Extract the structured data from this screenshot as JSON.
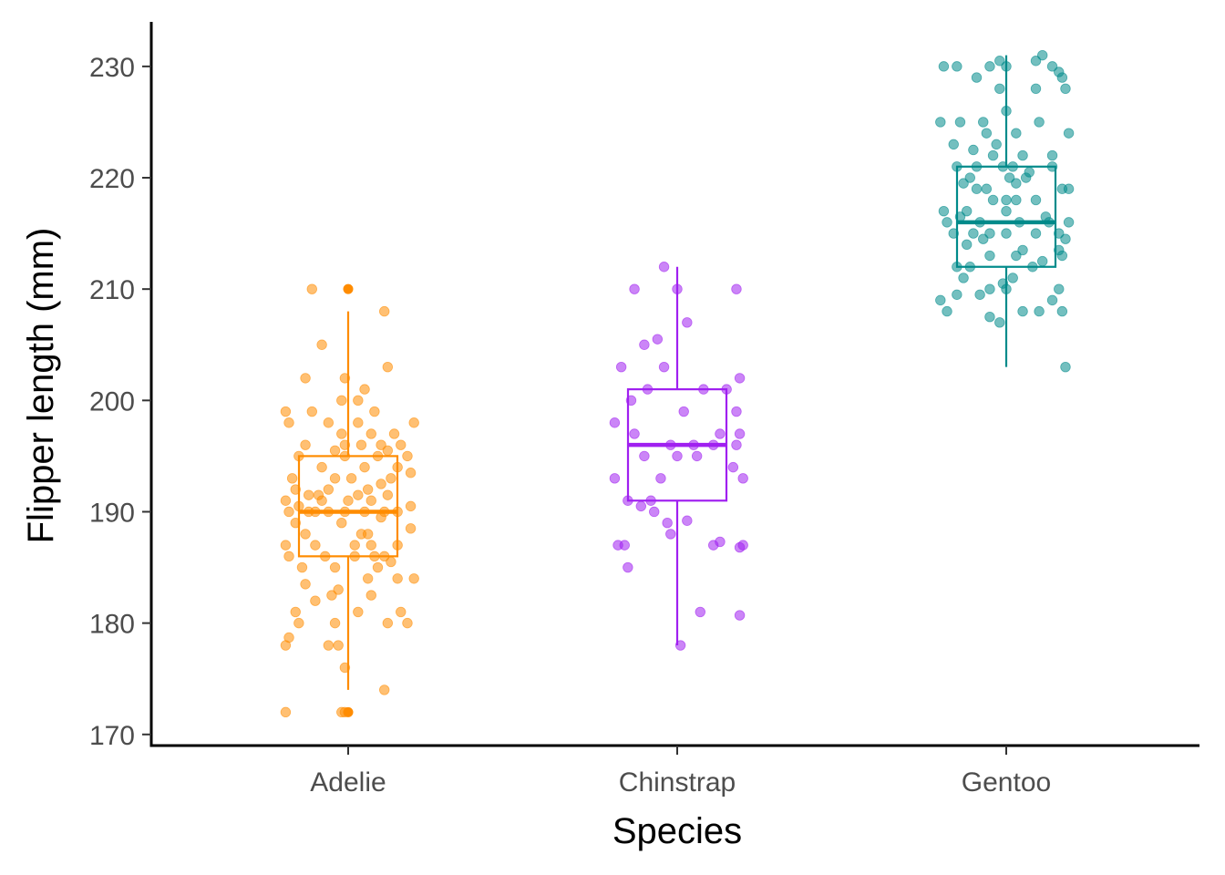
{
  "chart_data": {
    "type": "box",
    "xlabel": "Species",
    "ylabel": "Flipper length (mm)",
    "ylim": [
      169,
      234
    ],
    "yticks": [
      170,
      180,
      190,
      200,
      210,
      220,
      230
    ],
    "grid": false,
    "legend": "none",
    "categories": [
      "Adelie",
      "Chinstrap",
      "Gentoo"
    ],
    "series": [
      {
        "name": "Adelie",
        "color": "#ff8c00",
        "whisker_low": 174,
        "q1": 186,
        "median": 190,
        "q3": 195,
        "whisker_high": 208,
        "outliers": [
          210,
          172
        ],
        "points": [
          [
            -0.19,
            172
          ],
          [
            -0.01,
            172
          ],
          [
            -0.02,
            172
          ],
          [
            0.11,
            174
          ],
          [
            -0.01,
            176
          ],
          [
            -0.19,
            178
          ],
          [
            -0.06,
            178
          ],
          [
            -0.03,
            178
          ],
          [
            -0.18,
            178.7
          ],
          [
            -0.15,
            180
          ],
          [
            -0.04,
            180
          ],
          [
            0.12,
            180
          ],
          [
            0.18,
            180
          ],
          [
            0.03,
            181
          ],
          [
            -0.16,
            181
          ],
          [
            0.16,
            181
          ],
          [
            -0.1,
            182
          ],
          [
            -0.05,
            182.5
          ],
          [
            0.07,
            182.5
          ],
          [
            -0.03,
            183
          ],
          [
            -0.13,
            183.5
          ],
          [
            0.15,
            184
          ],
          [
            0.06,
            184
          ],
          [
            0.2,
            184
          ],
          [
            -0.14,
            185
          ],
          [
            -0.04,
            185
          ],
          [
            0.09,
            185
          ],
          [
            0.13,
            185.5
          ],
          [
            -0.18,
            186
          ],
          [
            -0.07,
            186
          ],
          [
            0.02,
            186
          ],
          [
            0.08,
            186
          ],
          [
            0.11,
            186
          ],
          [
            -0.19,
            187
          ],
          [
            -0.1,
            187
          ],
          [
            0.07,
            187
          ],
          [
            0.02,
            187
          ],
          [
            0.15,
            187
          ],
          [
            -0.13,
            188
          ],
          [
            0.04,
            188
          ],
          [
            0.06,
            188
          ],
          [
            0.19,
            188.5
          ],
          [
            -0.16,
            189
          ],
          [
            -0.02,
            189
          ],
          [
            0.1,
            189.5
          ],
          [
            -0.18,
            190
          ],
          [
            -0.12,
            190
          ],
          [
            -0.1,
            190
          ],
          [
            -0.06,
            190
          ],
          [
            -0.01,
            190
          ],
          [
            0.05,
            190
          ],
          [
            0.11,
            190
          ],
          [
            0.15,
            190
          ],
          [
            -0.15,
            190.5
          ],
          [
            0.19,
            190.5
          ],
          [
            -0.19,
            191
          ],
          [
            -0.08,
            191
          ],
          [
            0.0,
            191
          ],
          [
            0.07,
            191
          ],
          [
            -0.12,
            191.5
          ],
          [
            -0.09,
            191.5
          ],
          [
            0.03,
            191.5
          ],
          [
            0.12,
            191.5
          ],
          [
            -0.16,
            192
          ],
          [
            -0.06,
            192
          ],
          [
            0.06,
            192
          ],
          [
            0.1,
            192.5
          ],
          [
            -0.17,
            193
          ],
          [
            -0.04,
            193
          ],
          [
            0.01,
            193
          ],
          [
            0.13,
            193
          ],
          [
            0.19,
            193.5
          ],
          [
            -0.08,
            194
          ],
          [
            0.05,
            194
          ],
          [
            0.15,
            194
          ],
          [
            -0.15,
            195
          ],
          [
            -0.01,
            195
          ],
          [
            0.09,
            195
          ],
          [
            0.18,
            195
          ],
          [
            -0.04,
            195.5
          ],
          [
            0.12,
            195.5
          ],
          [
            -0.13,
            196
          ],
          [
            -0.01,
            196
          ],
          [
            0.04,
            196
          ],
          [
            0.1,
            196
          ],
          [
            0.16,
            196
          ],
          [
            0.07,
            197
          ],
          [
            -0.02,
            197
          ],
          [
            0.14,
            197
          ],
          [
            0.2,
            198
          ],
          [
            -0.18,
            198
          ],
          [
            -0.06,
            198
          ],
          [
            0.03,
            198
          ],
          [
            0.08,
            199
          ],
          [
            -0.11,
            199
          ],
          [
            -0.19,
            199
          ],
          [
            0.03,
            200
          ],
          [
            -0.02,
            200
          ],
          [
            0.05,
            201
          ],
          [
            0.12,
            203
          ],
          [
            -0.13,
            202
          ],
          [
            -0.01,
            202
          ],
          [
            -0.08,
            205
          ],
          [
            0.11,
            208
          ],
          [
            -0.11,
            210
          ]
        ]
      },
      {
        "name": "Chinstrap",
        "color": "#a020f0",
        "whisker_low": 178,
        "q1": 191,
        "median": 196,
        "q3": 201,
        "whisker_high": 212,
        "outliers": [],
        "points": [
          [
            0.01,
            178
          ],
          [
            0.19,
            180.7
          ],
          [
            0.07,
            181
          ],
          [
            -0.15,
            185
          ],
          [
            -0.16,
            187
          ],
          [
            -0.18,
            187
          ],
          [
            0.11,
            187
          ],
          [
            0.13,
            187.3
          ],
          [
            0.2,
            187
          ],
          [
            0.19,
            186.8
          ],
          [
            -0.02,
            188
          ],
          [
            -0.03,
            189
          ],
          [
            0.03,
            189.2
          ],
          [
            -0.07,
            190
          ],
          [
            -0.11,
            190.5
          ],
          [
            -0.08,
            191
          ],
          [
            -0.15,
            191
          ],
          [
            -0.19,
            193
          ],
          [
            0.2,
            193
          ],
          [
            -0.05,
            193
          ],
          [
            0.17,
            194
          ],
          [
            0.06,
            195
          ],
          [
            0.0,
            195
          ],
          [
            -0.1,
            195
          ],
          [
            -0.02,
            196
          ],
          [
            0.11,
            196
          ],
          [
            0.05,
            196
          ],
          [
            0.18,
            196
          ],
          [
            0.19,
            197
          ],
          [
            0.13,
            197
          ],
          [
            -0.13,
            197
          ],
          [
            -0.19,
            198
          ],
          [
            0.02,
            199
          ],
          [
            0.18,
            199
          ],
          [
            -0.14,
            200
          ],
          [
            -0.09,
            201
          ],
          [
            0.08,
            201
          ],
          [
            0.15,
            201
          ],
          [
            0.19,
            202
          ],
          [
            -0.17,
            203
          ],
          [
            -0.04,
            203
          ],
          [
            -0.1,
            205
          ],
          [
            -0.06,
            205.5
          ],
          [
            0.03,
            207
          ],
          [
            -0.13,
            210
          ],
          [
            0.18,
            210
          ],
          [
            0.0,
            210
          ],
          [
            -0.04,
            212
          ]
        ]
      },
      {
        "name": "Gentoo",
        "color": "#008b8b",
        "whisker_low": 203,
        "q1": 212,
        "median": 216,
        "q3": 221,
        "whisker_high": 231,
        "outliers": [],
        "points": [
          [
            0.18,
            203
          ],
          [
            -0.02,
            207
          ],
          [
            -0.05,
            207.5
          ],
          [
            0.1,
            208
          ],
          [
            -0.18,
            208
          ],
          [
            0.17,
            208
          ],
          [
            0.05,
            208
          ],
          [
            -0.2,
            209
          ],
          [
            0.14,
            209
          ],
          [
            -0.15,
            209.5
          ],
          [
            -0.08,
            209.5
          ],
          [
            -0.05,
            210
          ],
          [
            0.0,
            210
          ],
          [
            0.16,
            210
          ],
          [
            -0.01,
            210.5
          ],
          [
            0.02,
            211
          ],
          [
            -0.13,
            211
          ],
          [
            -0.15,
            212
          ],
          [
            -0.11,
            212
          ],
          [
            0.08,
            212
          ],
          [
            0.11,
            212.5
          ],
          [
            0.17,
            213
          ],
          [
            0.03,
            213
          ],
          [
            0.05,
            213.5
          ],
          [
            -0.05,
            213
          ],
          [
            -0.12,
            214
          ],
          [
            0.16,
            213.5
          ],
          [
            0.18,
            214.5
          ],
          [
            -0.07,
            214.5
          ],
          [
            0.0,
            215
          ],
          [
            0.09,
            215
          ],
          [
            0.16,
            215
          ],
          [
            -0.16,
            215
          ],
          [
            -0.1,
            215
          ],
          [
            -0.05,
            215
          ],
          [
            -0.18,
            216
          ],
          [
            -0.08,
            216
          ],
          [
            0.04,
            216
          ],
          [
            0.13,
            216
          ],
          [
            -0.14,
            216.5
          ],
          [
            0.12,
            216.5
          ],
          [
            0.19,
            216
          ],
          [
            -0.12,
            217
          ],
          [
            0.0,
            217
          ],
          [
            -0.19,
            217
          ],
          [
            -0.04,
            218
          ],
          [
            0.0,
            218
          ],
          [
            0.03,
            218
          ],
          [
            0.09,
            218
          ],
          [
            0.17,
            219
          ],
          [
            -0.06,
            219
          ],
          [
            -0.13,
            219.5
          ],
          [
            -0.09,
            219
          ],
          [
            0.03,
            219.5
          ],
          [
            0.19,
            219
          ],
          [
            -0.11,
            220
          ],
          [
            0.01,
            220
          ],
          [
            0.06,
            220
          ],
          [
            0.07,
            220.5
          ],
          [
            -0.01,
            221
          ],
          [
            -0.15,
            221
          ],
          [
            -0.09,
            221
          ],
          [
            0.02,
            221
          ],
          [
            0.14,
            221
          ],
          [
            -0.04,
            222
          ],
          [
            0.05,
            222
          ],
          [
            0.14,
            222
          ],
          [
            -0.1,
            222.5
          ],
          [
            -0.16,
            223
          ],
          [
            -0.03,
            223
          ],
          [
            0.03,
            224
          ],
          [
            -0.06,
            224
          ],
          [
            0.19,
            224
          ],
          [
            -0.14,
            225
          ],
          [
            0.1,
            225
          ],
          [
            -0.07,
            225
          ],
          [
            -0.2,
            225
          ],
          [
            0.0,
            226
          ],
          [
            -0.02,
            228
          ],
          [
            0.09,
            228
          ],
          [
            0.18,
            228
          ],
          [
            0.17,
            229
          ],
          [
            -0.09,
            229
          ],
          [
            0.16,
            229.5
          ],
          [
            -0.15,
            230
          ],
          [
            -0.19,
            230
          ],
          [
            -0.05,
            230
          ],
          [
            0.0,
            230
          ],
          [
            0.09,
            230.5
          ],
          [
            0.14,
            230
          ],
          [
            0.11,
            231
          ],
          [
            -0.02,
            230.5
          ]
        ]
      }
    ]
  }
}
